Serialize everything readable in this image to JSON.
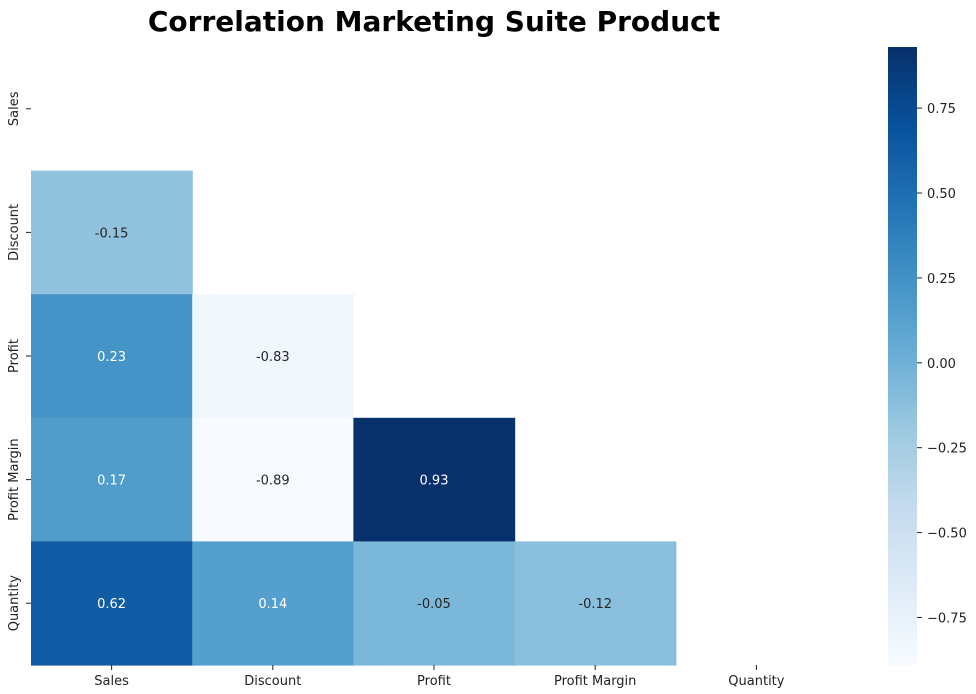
{
  "chart_data": {
    "type": "heatmap",
    "title": "Correlation Marketing Suite Product",
    "variables": [
      "Sales",
      "Discount",
      "Profit",
      "Profit Margin",
      "Quantity"
    ],
    "mask": "upper-triangle-including-diagonal",
    "cells": [
      {
        "row": "Discount",
        "col": "Sales",
        "value": -0.15,
        "label": "-0.15"
      },
      {
        "row": "Profit",
        "col": "Sales",
        "value": 0.23,
        "label": "0.23"
      },
      {
        "row": "Profit",
        "col": "Discount",
        "value": -0.83,
        "label": "-0.83"
      },
      {
        "row": "Profit Margin",
        "col": "Sales",
        "value": 0.17,
        "label": "0.17"
      },
      {
        "row": "Profit Margin",
        "col": "Discount",
        "value": -0.89,
        "label": "-0.89"
      },
      {
        "row": "Profit Margin",
        "col": "Profit",
        "value": 0.93,
        "label": "0.93"
      },
      {
        "row": "Quantity",
        "col": "Sales",
        "value": 0.62,
        "label": "0.62"
      },
      {
        "row": "Quantity",
        "col": "Discount",
        "value": 0.14,
        "label": "0.14"
      },
      {
        "row": "Quantity",
        "col": "Profit",
        "value": -0.05,
        "label": "-0.05"
      },
      {
        "row": "Quantity",
        "col": "Profit Margin",
        "value": -0.12,
        "label": "-0.12"
      }
    ],
    "colormap": "Blues",
    "colorbar": {
      "range": [
        -0.89,
        0.93
      ],
      "ticks": [
        0.75,
        0.5,
        0.25,
        0.0,
        -0.25,
        -0.5,
        -0.75
      ],
      "tick_labels": [
        "0.75",
        "0.50",
        "0.25",
        "0.00",
        "−0.25",
        "−0.50",
        "−0.75"
      ]
    }
  }
}
